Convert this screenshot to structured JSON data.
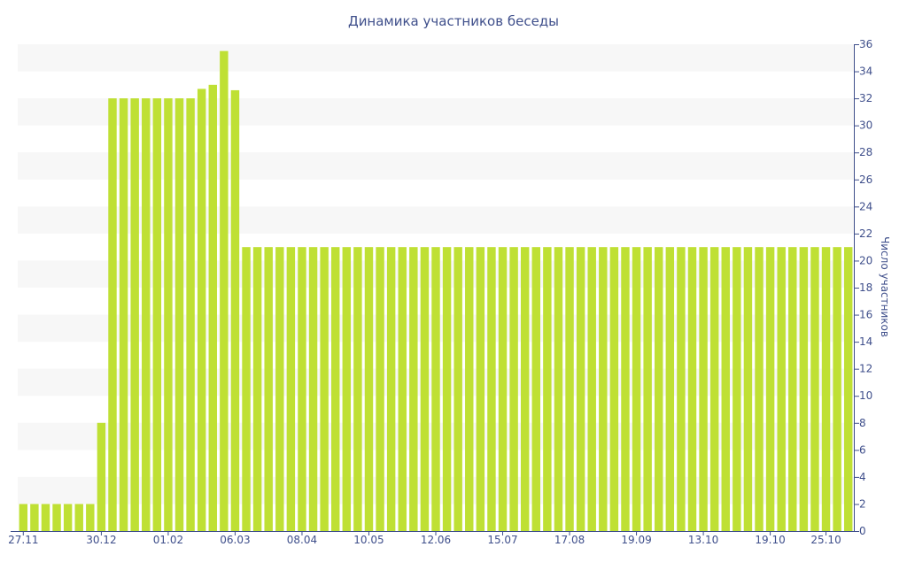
{
  "chart_data": {
    "type": "bar",
    "title": "Динамика участников беседы",
    "ylabel": "Число участников",
    "xlabel": "",
    "y_axis_side": "right",
    "ylim": [
      0,
      36
    ],
    "yticks": [
      0,
      2,
      4,
      6,
      8,
      10,
      12,
      14,
      16,
      18,
      20,
      22,
      24,
      26,
      28,
      30,
      32,
      34,
      36
    ],
    "grid": "alternating horizontal bands",
    "colors": {
      "bar": "#bfe034",
      "band": "#f7f7f7",
      "text": "#3f4f8b",
      "axis": "#3f4f8b"
    },
    "x_tick_labels": [
      {
        "index": 0,
        "label": "27.11"
      },
      {
        "index": 7,
        "label": "30.12"
      },
      {
        "index": 13,
        "label": "01.02"
      },
      {
        "index": 19,
        "label": "06.03"
      },
      {
        "index": 25,
        "label": "08.04"
      },
      {
        "index": 31,
        "label": "10.05"
      },
      {
        "index": 37,
        "label": "12.06"
      },
      {
        "index": 43,
        "label": "15.07"
      },
      {
        "index": 49,
        "label": "17.08"
      },
      {
        "index": 55,
        "label": "19.09"
      },
      {
        "index": 61,
        "label": "13.10"
      },
      {
        "index": 67,
        "label": "19.10"
      },
      {
        "index": 72,
        "label": "25.10"
      }
    ],
    "values": [
      2,
      2,
      2,
      2,
      2,
      2,
      2,
      8,
      32,
      32,
      32,
      32,
      32,
      32,
      32,
      32,
      32.7,
      33,
      35.5,
      32.6,
      21,
      21,
      21,
      21,
      21,
      21,
      21,
      21,
      21,
      21,
      21,
      21,
      21,
      21,
      21,
      21,
      21,
      21,
      21,
      21,
      21,
      21,
      21,
      21,
      21,
      21,
      21,
      21,
      21,
      21,
      21,
      21,
      21,
      21,
      21,
      21,
      21,
      21,
      21,
      21,
      21,
      21,
      21,
      21,
      21,
      21,
      21,
      21,
      21,
      21,
      21,
      21,
      21,
      21,
      21
    ]
  }
}
